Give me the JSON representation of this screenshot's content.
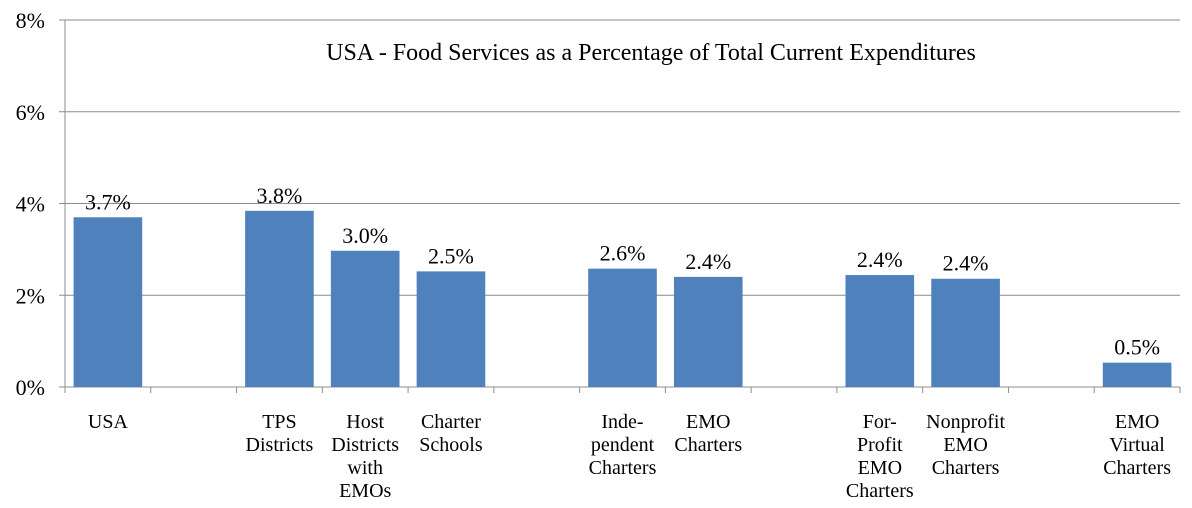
{
  "chart_data": {
    "type": "bar",
    "title": "USA - Food Services as a Percentage of Total Current Expenditures",
    "xlabel": "",
    "ylabel": "",
    "ylim": [
      0,
      8
    ],
    "yticks": [
      "0%",
      "2%",
      "4%",
      "6%",
      "8%"
    ],
    "grid": true,
    "legend": "none",
    "bar_color": "#4f81bd",
    "categories": [
      "USA",
      "",
      "TPS Districts",
      "Host Districts with EMOs",
      "Charter Schools",
      "",
      "Inde-pendent Charters",
      "EMO Charters",
      "",
      "For-Profit EMO Charters",
      "Nonprofit EMO Charters",
      "",
      "EMO Virtual Charters"
    ],
    "category_lines": [
      [
        "USA"
      ],
      [],
      [
        "TPS",
        "Districts"
      ],
      [
        "Host",
        "Districts",
        "with",
        "EMOs"
      ],
      [
        "Charter",
        "Schools"
      ],
      [],
      [
        "Inde-",
        "pendent",
        "Charters"
      ],
      [
        "EMO",
        "Charters"
      ],
      [],
      [
        "For-",
        "Profit",
        "EMO",
        "Charters"
      ],
      [
        "Nonprofit",
        "EMO",
        "Charters"
      ],
      [],
      [
        "EMO",
        "Virtual",
        "Charters"
      ]
    ],
    "values": [
      3.7,
      null,
      3.84,
      2.97,
      2.52,
      null,
      2.58,
      2.4,
      null,
      2.44,
      2.36,
      null,
      0.53
    ],
    "value_labels": [
      "3.7%",
      "",
      "3.8%",
      "3.0%",
      "2.5%",
      "",
      "2.6%",
      "2.4%",
      "",
      "2.4%",
      "2.4%",
      "",
      "0.5%"
    ]
  }
}
